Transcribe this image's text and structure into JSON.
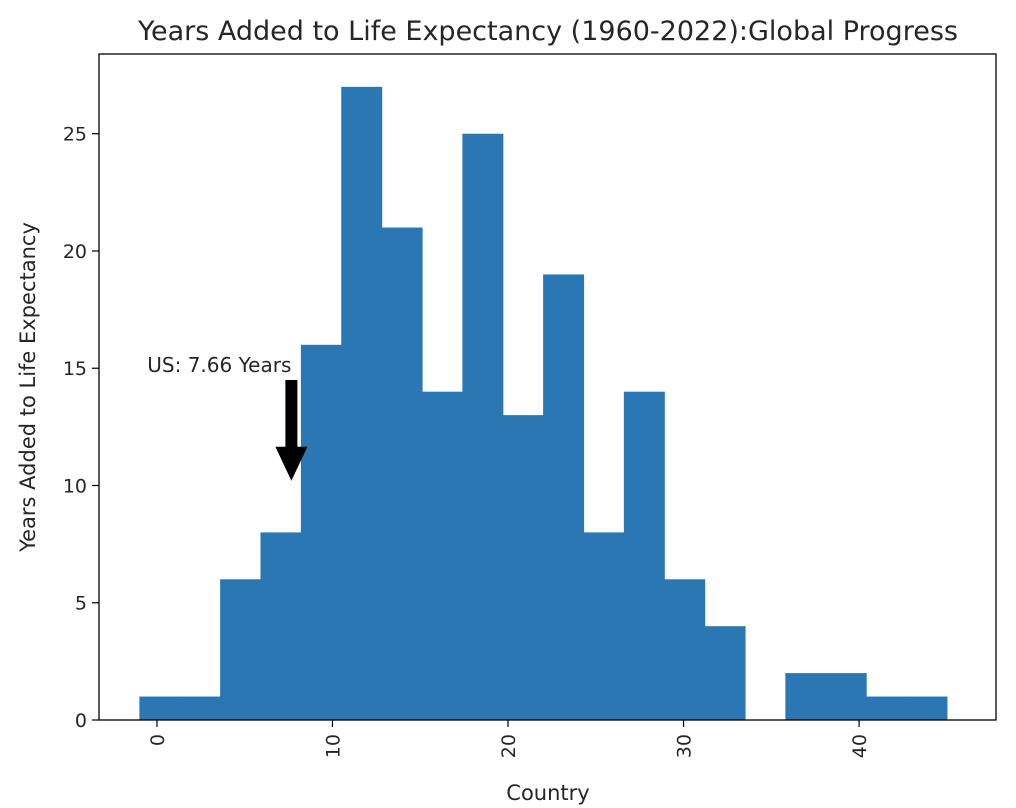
{
  "chart_data": {
    "type": "bar",
    "title": "Years Added to Life Expectancy (1960-2022):Global Progress",
    "xlabel": "Country",
    "ylabel": "Years Added to Life Expectancy",
    "xlim": [
      -3.3,
      47.8
    ],
    "ylim": [
      0,
      28.4
    ],
    "xticks": [
      0,
      10,
      20,
      30,
      40
    ],
    "yticks": [
      0,
      5,
      10,
      15,
      20,
      25
    ],
    "x_tick_rotation": 90,
    "color": "#2a77b4",
    "bins": [
      {
        "x0": -1.0,
        "x1": 1.3,
        "value": 1
      },
      {
        "x0": 1.3,
        "x1": 3.6,
        "value": 1
      },
      {
        "x0": 3.6,
        "x1": 5.9,
        "value": 6
      },
      {
        "x0": 5.9,
        "x1": 8.2,
        "value": 8
      },
      {
        "x0": 8.2,
        "x1": 10.5,
        "value": 16
      },
      {
        "x0": 10.5,
        "x1": 12.8,
        "value": 27
      },
      {
        "x0": 12.8,
        "x1": 15.1,
        "value": 21
      },
      {
        "x0": 15.1,
        "x1": 17.4,
        "value": 14
      },
      {
        "x0": 17.4,
        "x1": 19.7,
        "value": 25
      },
      {
        "x0": 19.7,
        "x1": 22.0,
        "value": 13
      },
      {
        "x0": 22.0,
        "x1": 24.3,
        "value": 19
      },
      {
        "x0": 24.3,
        "x1": 26.6,
        "value": 8
      },
      {
        "x0": 26.6,
        "x1": 28.9,
        "value": 14
      },
      {
        "x0": 28.9,
        "x1": 31.2,
        "value": 6
      },
      {
        "x0": 31.2,
        "x1": 33.5,
        "value": 4
      },
      {
        "x0": 33.5,
        "x1": 35.8,
        "value": 0
      },
      {
        "x0": 35.8,
        "x1": 38.1,
        "value": 2
      },
      {
        "x0": 38.1,
        "x1": 40.4,
        "value": 2
      },
      {
        "x0": 40.4,
        "x1": 42.7,
        "value": 1
      },
      {
        "x0": 42.7,
        "x1": 45.0,
        "value": 1
      }
    ],
    "annotation": {
      "text": "US: 7.66 Years",
      "arrow_x": 7.66,
      "arrow_tip_y": 10.2,
      "arrow_tail_y": 14.5,
      "text_y": 15.1,
      "color": "#000000"
    }
  }
}
